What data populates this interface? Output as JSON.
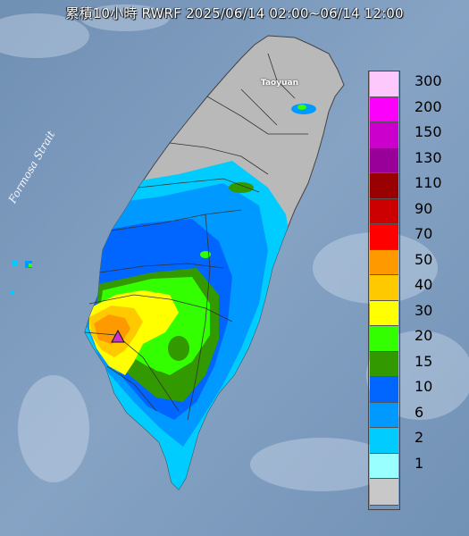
{
  "title": "累積10小時 RWRF 2025/06/14 02:00~06/14 12:00",
  "labels": {
    "strait": "Formosa Strait",
    "city": "Taoyuan"
  },
  "marker": {
    "shape": "triangle",
    "color": "#cc33cc"
  },
  "legend": [
    {
      "label": "300",
      "color": "#fdc9fd"
    },
    {
      "label": "200",
      "color": "#fb00fb"
    },
    {
      "label": "150",
      "color": "#cc00cc"
    },
    {
      "label": "130",
      "color": "#990099"
    },
    {
      "label": "110",
      "color": "#990000"
    },
    {
      "label": "90",
      "color": "#cc0000"
    },
    {
      "label": "70",
      "color": "#ff0000"
    },
    {
      "label": "50",
      "color": "#ff9900"
    },
    {
      "label": "40",
      "color": "#ffc900"
    },
    {
      "label": "30",
      "color": "#ffff00"
    },
    {
      "label": "20",
      "color": "#33ff00"
    },
    {
      "label": "15",
      "color": "#339900"
    },
    {
      "label": "10",
      "color": "#0066ff"
    },
    {
      "label": "6",
      "color": "#0099ff"
    },
    {
      "label": "2",
      "color": "#00ccff"
    },
    {
      "label": "1",
      "color": "#99ffff"
    },
    {
      "label": "",
      "color": "#c8c8c8"
    }
  ]
}
